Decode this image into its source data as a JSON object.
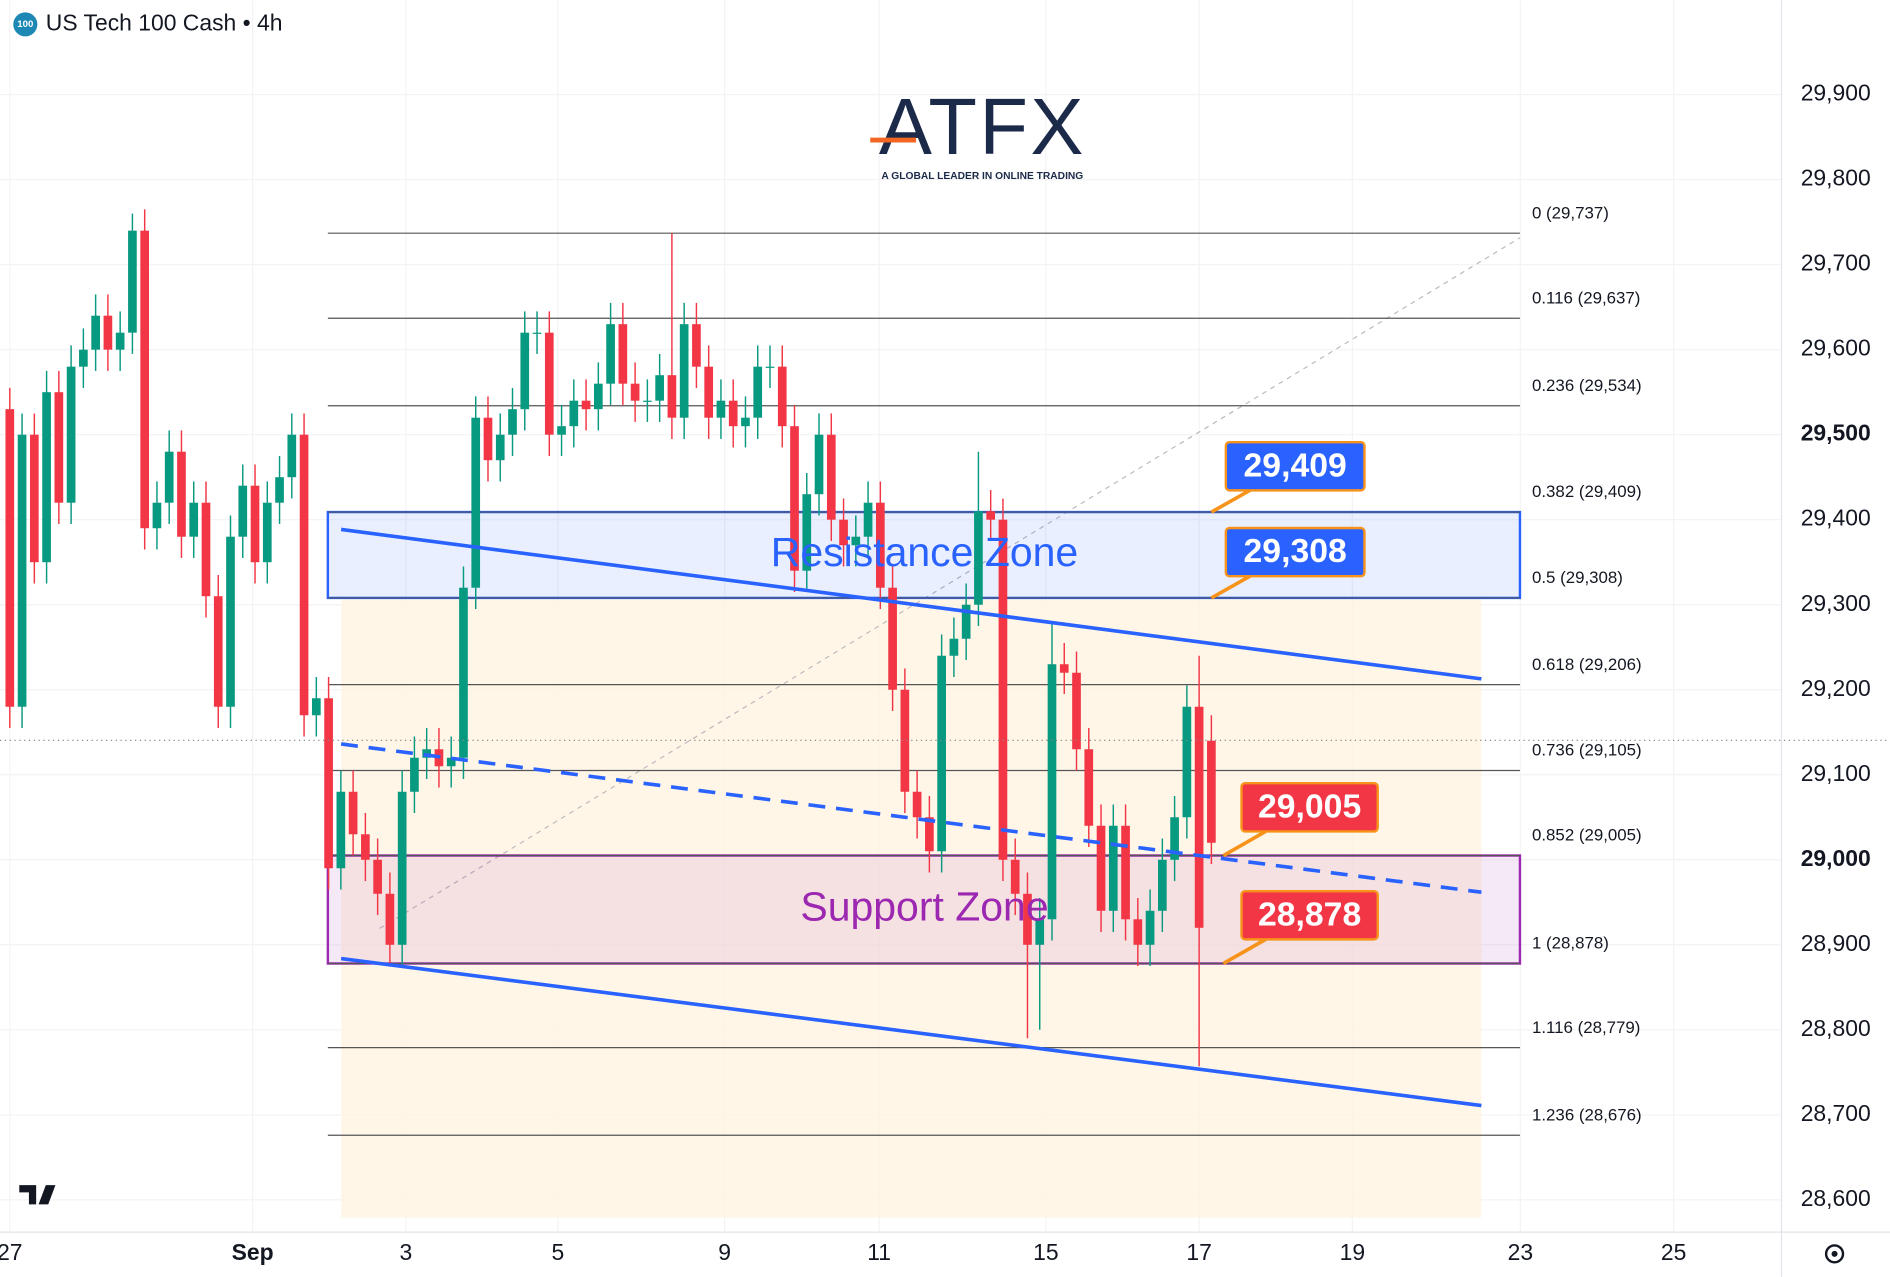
{
  "chart_data": {
    "type": "candlestick",
    "title": "US Tech 100 Cash • 4h",
    "symbol_badge": "100",
    "watermark_logo": "ATFX",
    "watermark_tagline": "A GLOBAL LEADER IN ONLINE TRADING",
    "up_color": "#089981",
    "down_color": "#f23645",
    "open": [
      29530,
      29180,
      29500,
      29350,
      29550,
      29420,
      29580,
      29600,
      29640,
      29600,
      29620,
      29740,
      29390,
      29420,
      29480,
      29380,
      29420,
      29310,
      29180,
      29380,
      29440,
      29350,
      29420,
      29450,
      29500,
      29170,
      29190,
      28990,
      29080,
      29030,
      29000,
      28960,
      28900,
      29080,
      29120,
      29130,
      29110,
      29120,
      29320,
      29520,
      29470,
      29500,
      29530,
      29620,
      29620,
      29500,
      29510,
      29540,
      29530,
      29560,
      29630,
      29560,
      29540,
      29540,
      29570,
      29520,
      29630,
      29580,
      29520,
      29540,
      29510,
      29520,
      29580,
      29580,
      29510,
      29340,
      29430,
      29500,
      29400,
      29370,
      29380,
      29420,
      29320,
      29200,
      29080,
      29050,
      29010,
      29240,
      29260,
      29300,
      29410,
      29400,
      29000,
      28960,
      28900,
      28930,
      29230,
      29220,
      29130,
      29040,
      28940,
      29040,
      28930,
      28900,
      28940,
      29000,
      29050,
      29180,
      29140
    ],
    "high": [
      29555,
      29525,
      29525,
      29575,
      29575,
      29605,
      29625,
      29665,
      29665,
      29645,
      29760,
      29765,
      29445,
      29505,
      29505,
      29445,
      29445,
      29335,
      29405,
      29465,
      29465,
      29445,
      29475,
      29525,
      29525,
      29215,
      29215,
      29105,
      29105,
      29055,
      29025,
      28985,
      29105,
      29145,
      29155,
      29155,
      29145,
      29345,
      29545,
      29545,
      29525,
      29555,
      29645,
      29645,
      29645,
      29535,
      29565,
      29565,
      29585,
      29655,
      29655,
      29585,
      29565,
      29595,
      29737,
      29655,
      29655,
      29605,
      29565,
      29565,
      29545,
      29605,
      29605,
      29605,
      29535,
      29455,
      29525,
      29525,
      29425,
      29405,
      29445,
      29445,
      29345,
      29225,
      29105,
      29075,
      29265,
      29285,
      29325,
      29480,
      29435,
      29425,
      29025,
      28985,
      28955,
      29280,
      29255,
      29245,
      29155,
      29065,
      29065,
      29065,
      28955,
      28965,
      29025,
      29075,
      29205,
      29240,
      29170
    ],
    "low": [
      29155,
      29155,
      29325,
      29325,
      29395,
      29395,
      29555,
      29575,
      29575,
      29575,
      29595,
      29365,
      29365,
      29395,
      29355,
      29355,
      29285,
      29155,
      29155,
      29355,
      29325,
      29325,
      29395,
      29425,
      29145,
      29145,
      28965,
      28965,
      29005,
      28975,
      28935,
      28875,
      28875,
      29055,
      29095,
      29085,
      29085,
      29095,
      29295,
      29445,
      29445,
      29475,
      29505,
      29595,
      29475,
      29475,
      29485,
      29505,
      29505,
      29535,
      29535,
      29515,
      29515,
      29515,
      29495,
      29495,
      29555,
      29495,
      29495,
      29485,
      29485,
      29495,
      29555,
      29485,
      29315,
      29315,
      29405,
      29375,
      29345,
      29345,
      29355,
      29295,
      29175,
      29055,
      29025,
      28985,
      28985,
      29215,
      29235,
      29275,
      29375,
      28975,
      28935,
      28790,
      28800,
      28905,
      29195,
      29105,
      29015,
      28915,
      28915,
      28905,
      28875,
      28875,
      28915,
      28975,
      29025,
      28757,
      28995
    ],
    "close": [
      29180,
      29500,
      29350,
      29550,
      29420,
      29580,
      29600,
      29640,
      29600,
      29620,
      29740,
      29390,
      29420,
      29480,
      29380,
      29420,
      29310,
      29180,
      29380,
      29440,
      29350,
      29420,
      29450,
      29500,
      29170,
      29190,
      28990,
      29080,
      29030,
      29000,
      28960,
      28900,
      29080,
      29120,
      29130,
      29110,
      29120,
      29320,
      29520,
      29470,
      29500,
      29530,
      29620,
      29620,
      29500,
      29510,
      29540,
      29530,
      29560,
      29630,
      29560,
      29540,
      29540,
      29570,
      29520,
      29630,
      29580,
      29520,
      29540,
      29510,
      29520,
      29580,
      29580,
      29510,
      29340,
      29430,
      29500,
      29400,
      29370,
      29380,
      29420,
      29320,
      29200,
      29080,
      29050,
      29010,
      29240,
      29260,
      29300,
      29410,
      29400,
      29000,
      28960,
      28900,
      28930,
      29230,
      29220,
      29130,
      29040,
      28940,
      29040,
      28930,
      28900,
      28940,
      29000,
      29050,
      29180,
      28920,
      29020
    ],
    "xlim": [
      -0.8,
      144.5
    ],
    "xticks": [
      {
        "value": 0,
        "label": "27"
      },
      {
        "value": 19.8,
        "label": "Sep",
        "bold": true
      },
      {
        "value": 32.3,
        "label": "3"
      },
      {
        "value": 44.7,
        "label": "5"
      },
      {
        "value": 58.3,
        "label": "9"
      },
      {
        "value": 70.9,
        "label": "11"
      },
      {
        "value": 84.5,
        "label": "15"
      },
      {
        "value": 97.0,
        "label": "17"
      },
      {
        "value": 109.5,
        "label": "19"
      },
      {
        "value": 123.2,
        "label": "23"
      },
      {
        "value": 135.7,
        "label": "25"
      }
    ],
    "ylim": [
      28562,
      30011
    ],
    "yticks": [
      {
        "value": 28600,
        "label": "28,600"
      },
      {
        "value": 28700,
        "label": "28,700"
      },
      {
        "value": 28800,
        "label": "28,800"
      },
      {
        "value": 28900,
        "label": "28,900"
      },
      {
        "value": 29000,
        "label": "29,000",
        "bold": true
      },
      {
        "value": 29100,
        "label": "29,100"
      },
      {
        "value": 29200,
        "label": "29,200"
      },
      {
        "value": 29300,
        "label": "29,300"
      },
      {
        "value": 29400,
        "label": "29,400"
      },
      {
        "value": 29500,
        "label": "29,500",
        "bold": true
      },
      {
        "value": 29600,
        "label": "29,600"
      },
      {
        "value": 29700,
        "label": "29,700"
      },
      {
        "value": 29800,
        "label": "29,800"
      },
      {
        "value": 29900,
        "label": "29,900"
      }
    ],
    "fib_levels": [
      {
        "value": 29737,
        "label": "0 (29,737)"
      },
      {
        "value": 29637,
        "label": "0.116 (29,637)"
      },
      {
        "value": 29534,
        "label": "0.236 (29,534)"
      },
      {
        "value": 29409,
        "label": "0.382 (29,409)"
      },
      {
        "value": 29308,
        "label": "0.5 (29,308)"
      },
      {
        "value": 29206,
        "label": "0.618 (29,206)"
      },
      {
        "value": 29105,
        "label": "0.736 (29,105)"
      },
      {
        "value": 29005,
        "label": "0.852 (29,005)"
      },
      {
        "value": 28878,
        "label": "1 (28,878)"
      },
      {
        "value": 28779,
        "label": "1.116 (28,779)"
      },
      {
        "value": 28676,
        "label": "1.236 (28,676)"
      }
    ],
    "zones": [
      {
        "from": 29308,
        "to": 29409,
        "label": "Resistance Zone",
        "color": "#2962ff"
      },
      {
        "from": 28878,
        "to": 29005,
        "label": "Support Zone",
        "color": "#9c27b0"
      }
    ],
    "callouts": [
      {
        "value": 29409,
        "label": "29,409",
        "color": "#2962ff"
      },
      {
        "value": 29308,
        "label": "29,308",
        "color": "#2962ff"
      },
      {
        "value": 29005,
        "label": "29,005",
        "color": "#f23645"
      },
      {
        "value": 28878,
        "label": "28,878",
        "color": "#f23645"
      }
    ]
  }
}
